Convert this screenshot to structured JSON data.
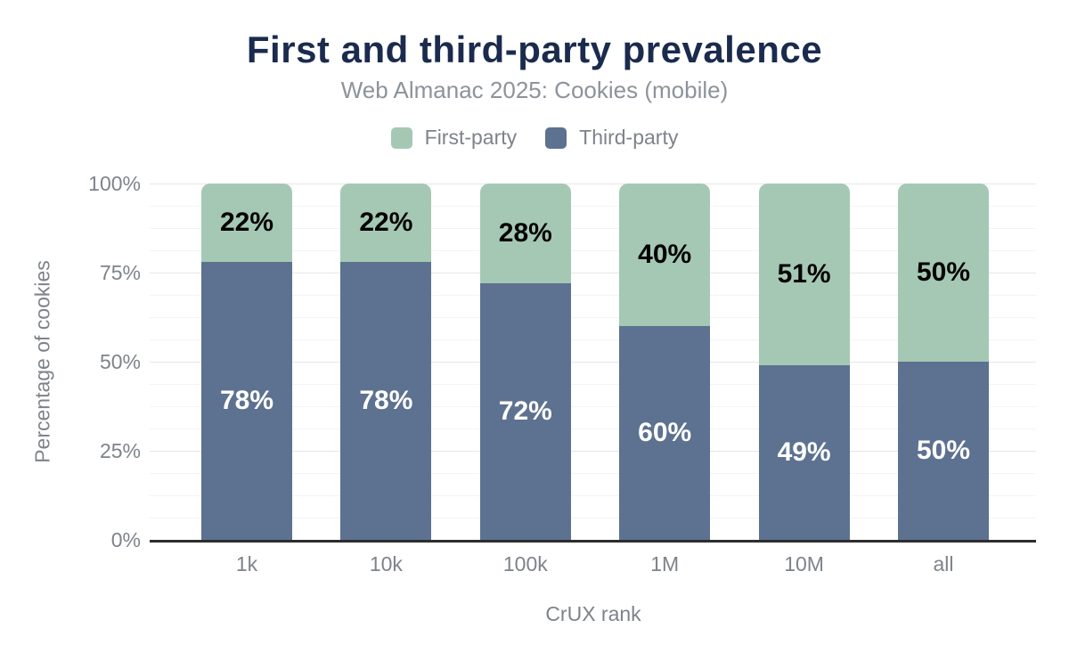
{
  "figure": {
    "title": "First and third-party prevalence",
    "subtitle": "Web Almanac 2025: Cookies (mobile)"
  },
  "chart_data": {
    "type": "bar",
    "stacked": true,
    "title": "First and third-party prevalence",
    "subtitle": "Web Almanac 2025: Cookies (mobile)",
    "categories": [
      "1k",
      "10k",
      "100k",
      "1M",
      "10M",
      "all"
    ],
    "series": [
      {
        "name": "First-party",
        "color": "#a5c8b4",
        "label_color": "#000000",
        "values": [
          22,
          22,
          28,
          40,
          51,
          50
        ]
      },
      {
        "name": "Third-party",
        "color": "#5d7190",
        "label_color": "#ffffff",
        "values": [
          78,
          78,
          72,
          60,
          49,
          50
        ]
      }
    ],
    "stack_order_bottom_to_top": [
      "Third-party",
      "First-party"
    ],
    "value_suffix": "%",
    "xlabel": "CrUX rank",
    "ylabel": "Percentage of cookies",
    "ylim": [
      0,
      100
    ],
    "yticks": [
      0,
      25,
      50,
      75,
      100
    ],
    "ytick_suffix": "%",
    "minor_tick_step": 6.25,
    "grid": "horizontal",
    "legend_position": "top"
  },
  "colors": {
    "title": "#1a2b4d",
    "subtitle_text": "#8d939b",
    "muted_text": "#7e838b",
    "axis_line": "#2d2d2d",
    "grid_major": "#e7e7e7",
    "grid_minor": "#f4f4f4",
    "background": "#ffffff"
  }
}
